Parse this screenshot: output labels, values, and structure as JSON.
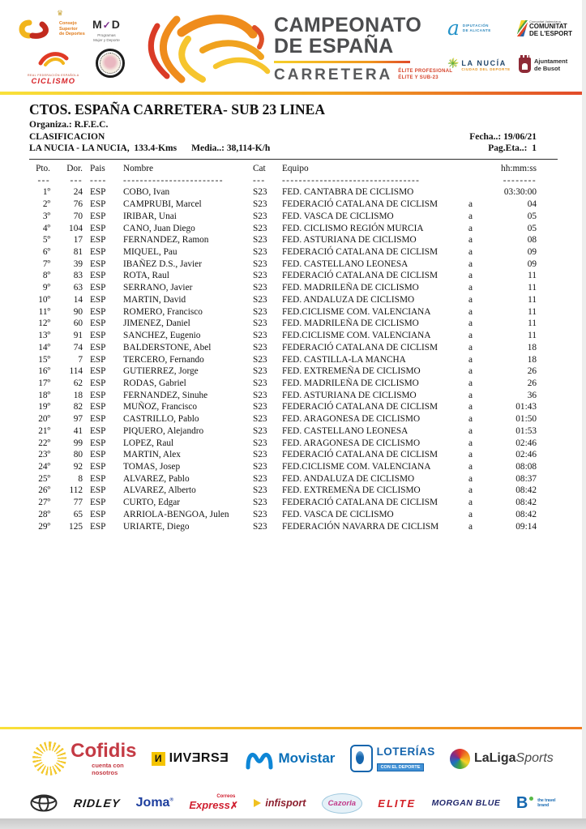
{
  "header": {
    "csd": {
      "line1": "Consejo",
      "line2": "Superior",
      "line3": "de Deportes"
    },
    "myd": {
      "name_m": "M",
      "name_check": "✓",
      "name_d": "D",
      "sub1": "Programas",
      "sub2": "Mujer y Deporte"
    },
    "rfec": {
      "tiny": "REAL FEDERACIÓN ESPAÑOLA",
      "name": "CICLISMO"
    },
    "event": {
      "line1": "CAMPEONATO",
      "line2": "DE ESPAÑA",
      "line3": "CARRETERA",
      "sub1": "ÉLITE PROFESIONAL",
      "sub2": "ÉLITE Y SUB-23"
    },
    "alicante": {
      "glyph": "a",
      "t1": "DIPUTACIÓN",
      "t2": "DE ALICANTE"
    },
    "comunitat": {
      "tiny": "Comunitat Valenciana",
      "t1": "COMUNITAT",
      "t2": "DE L'ESPORT"
    },
    "lanucia": {
      "star": "✳",
      "name": "LA NUCÍA",
      "sub": "CIUDAD DEL DEPORTE"
    },
    "busot": {
      "t1": "Ajuntament",
      "t2": "de Busot"
    }
  },
  "doc": {
    "title": "CTOS. ESPAÑA CARRETERA- SUB 23 LINEA",
    "organiza": "Organiza.: R.F.E.C.",
    "clasificacion": "CLASIFICACION",
    "fecha": "Fecha..: 19/06/21",
    "route": "LA NUCIA - LA NUCIA,  133.4-Kms",
    "media": "Media..: 38,114-K/h",
    "pag": "Pag.Eta..:  1"
  },
  "table": {
    "header_row": [
      "Pto.",
      "Dor.",
      "Pais",
      "Nombre",
      "Cat",
      "Equipo",
      "",
      "hh:mm:ss"
    ],
    "dash_row": [
      "---",
      "---",
      "----",
      "------------------------",
      "---",
      "---------------------------------",
      "",
      "--------"
    ],
    "rows": [
      [
        "1º",
        "24",
        "ESP",
        "COBO, Ivan",
        "S23",
        "FED. CANTABRA DE CICLISMO",
        "",
        "03:30:00"
      ],
      [
        "2º",
        "76",
        "ESP",
        "CAMPRUBI, Marcel",
        "S23",
        "FEDERACIÓ CATALANA DE CICLISM",
        "a",
        "04"
      ],
      [
        "3º",
        "70",
        "ESP",
        "IRIBAR, Unai",
        "S23",
        "FED. VASCA DE CICLISMO",
        "a",
        "05"
      ],
      [
        "4º",
        "104",
        "ESP",
        "CANO, Juan Diego",
        "S23",
        "FED. CICLISMO REGIÓN MURCIA",
        "a",
        "05"
      ],
      [
        "5º",
        "17",
        "ESP",
        "FERNANDEZ, Ramon",
        "S23",
        "FED. ASTURIANA DE CICLISMO",
        "a",
        "08"
      ],
      [
        "6º",
        "81",
        "ESP",
        "MIQUEL, Pau",
        "S23",
        "FEDERACIÓ CATALANA DE CICLISM",
        "a",
        "09"
      ],
      [
        "7º",
        "39",
        "ESP",
        "IBAÑEZ D.S., Javier",
        "S23",
        "FED. CASTELLANO LEONESA",
        "a",
        "09"
      ],
      [
        "8º",
        "83",
        "ESP",
        "ROTA, Raul",
        "S23",
        "FEDERACIÓ CATALANA DE CICLISM",
        "a",
        "11"
      ],
      [
        "9º",
        "63",
        "ESP",
        "SERRANO, Javier",
        "S23",
        "FED. MADRILEÑA DE CICLISMO",
        "a",
        "11"
      ],
      [
        "10º",
        "14",
        "ESP",
        "MARTIN, David",
        "S23",
        "FED. ANDALUZA DE CICLISMO",
        "a",
        "11"
      ],
      [
        "11º",
        "90",
        "ESP",
        "ROMERO, Francisco",
        "S23",
        "FED.CICLISME COM. VALENCIANA",
        "a",
        "11"
      ],
      [
        "12º",
        "60",
        "ESP",
        "JIMENEZ, Daniel",
        "S23",
        "FED. MADRILEÑA DE CICLISMO",
        "a",
        "11"
      ],
      [
        "13º",
        "91",
        "ESP",
        "SANCHEZ, Eugenio",
        "S23",
        "FED.CICLISME COM. VALENCIANA",
        "a",
        "11"
      ],
      [
        "14º",
        "74",
        "ESP",
        "BALDERSTONE, Abel",
        "S23",
        "FEDERACIÓ CATALANA DE CICLISM",
        "a",
        "18"
      ],
      [
        "15º",
        "7",
        "ESP",
        "TERCERO, Fernando",
        "S23",
        "FED. CASTILLA-LA MANCHA",
        "a",
        "18"
      ],
      [
        "16º",
        "114",
        "ESP",
        "GUTIERREZ, Jorge",
        "S23",
        "FED. EXTREMEÑA DE CICLISMO",
        "a",
        "26"
      ],
      [
        "17º",
        "62",
        "ESP",
        "RODAS, Gabriel",
        "S23",
        "FED. MADRILEÑA DE CICLISMO",
        "a",
        "26"
      ],
      [
        "18º",
        "18",
        "ESP",
        "FERNANDEZ, Sinuhe",
        "S23",
        "FED. ASTURIANA DE CICLISMO",
        "a",
        "36"
      ],
      [
        "19º",
        "82",
        "ESP",
        "MUÑOZ, Francisco",
        "S23",
        "FEDERACIÓ CATALANA DE CICLISM",
        "a",
        "01:43"
      ],
      [
        "20º",
        "97",
        "ESP",
        "CASTRILLO, Pablo",
        "S23",
        "FED. ARAGONESA DE CICLISMO",
        "a",
        "01:50"
      ],
      [
        "21º",
        "41",
        "ESP",
        "PIQUERO, Alejandro",
        "S23",
        "FED. CASTELLANO LEONESA",
        "a",
        "01:53"
      ],
      [
        "22º",
        "99",
        "ESP",
        "LOPEZ, Raul",
        "S23",
        "FED. ARAGONESA DE CICLISMO",
        "a",
        "02:46"
      ],
      [
        "23º",
        "80",
        "ESP",
        "MARTIN, Alex",
        "S23",
        "FEDERACIÓ CATALANA DE CICLISM",
        "a",
        "02:46"
      ],
      [
        "24º",
        "92",
        "ESP",
        "TOMAS, Josep",
        "S23",
        "FED.CICLISME COM. VALENCIANA",
        "a",
        "08:08"
      ],
      [
        "25º",
        "8",
        "ESP",
        "ALVAREZ, Pablo",
        "S23",
        "FED. ANDALUZA DE CICLISMO",
        "a",
        "08:37"
      ],
      [
        "26º",
        "112",
        "ESP",
        "ALVAREZ, Alberto",
        "S23",
        "FED. EXTREMEÑA DE CICLISMO",
        "a",
        "08:42"
      ],
      [
        "27º",
        "77",
        "ESP",
        "CURTO, Edgar",
        "S23",
        "FEDERACIÓ CATALANA DE CICLISM",
        "a",
        "08:42"
      ],
      [
        "28º",
        "65",
        "ESP",
        "ARRIOLA-BENGOA, Julen",
        "S23",
        "FED. VASCA DE CICLISMO",
        "a",
        "08:42"
      ],
      [
        "29º",
        "125",
        "ESP",
        "URIARTE, Diego",
        "S23",
        "FEDERACIÓN NAVARRA DE CICLISM",
        "a",
        "09:14"
      ]
    ]
  },
  "sponsors": {
    "cofidis": {
      "name": "Cofidis",
      "tag1": "cuenta con",
      "tag2": "nosotros"
    },
    "inverse": {
      "block": "И",
      "name": "IИVƎRSƎ"
    },
    "movistar": {
      "name": "Movistar"
    },
    "loterias": {
      "name": "LOTERÍAS",
      "badge": "CON EL DEPORTE"
    },
    "laliga": {
      "name": "LaLiga",
      "suffix": "Sports"
    },
    "ridley": {
      "name": "RIDLEY"
    },
    "joma": {
      "name": "Joma"
    },
    "correos": {
      "small": "Correos",
      "name": "Express",
      "x": "✗"
    },
    "infisport": {
      "name": "infisport"
    },
    "cazorla": {
      "name": "Cazorla"
    },
    "elite": {
      "name": "ELITE"
    },
    "morgan": {
      "name": "MORGAN BLUE"
    },
    "btravel": {
      "name": "B",
      "tag1": "the travel",
      "tag2": "brand"
    }
  },
  "colors": {
    "divider_yellow": "#f9e13a",
    "divider_orange": "#f2a71f",
    "divider_red": "#e2492a",
    "cofidis_red": "#c43a44",
    "movistar_blue": "#0a6fb8",
    "loterias_blue": "#1565ad",
    "joma_blue": "#1d3e9e",
    "elite_red": "#d42027",
    "morgan_navy": "#232a6e"
  }
}
